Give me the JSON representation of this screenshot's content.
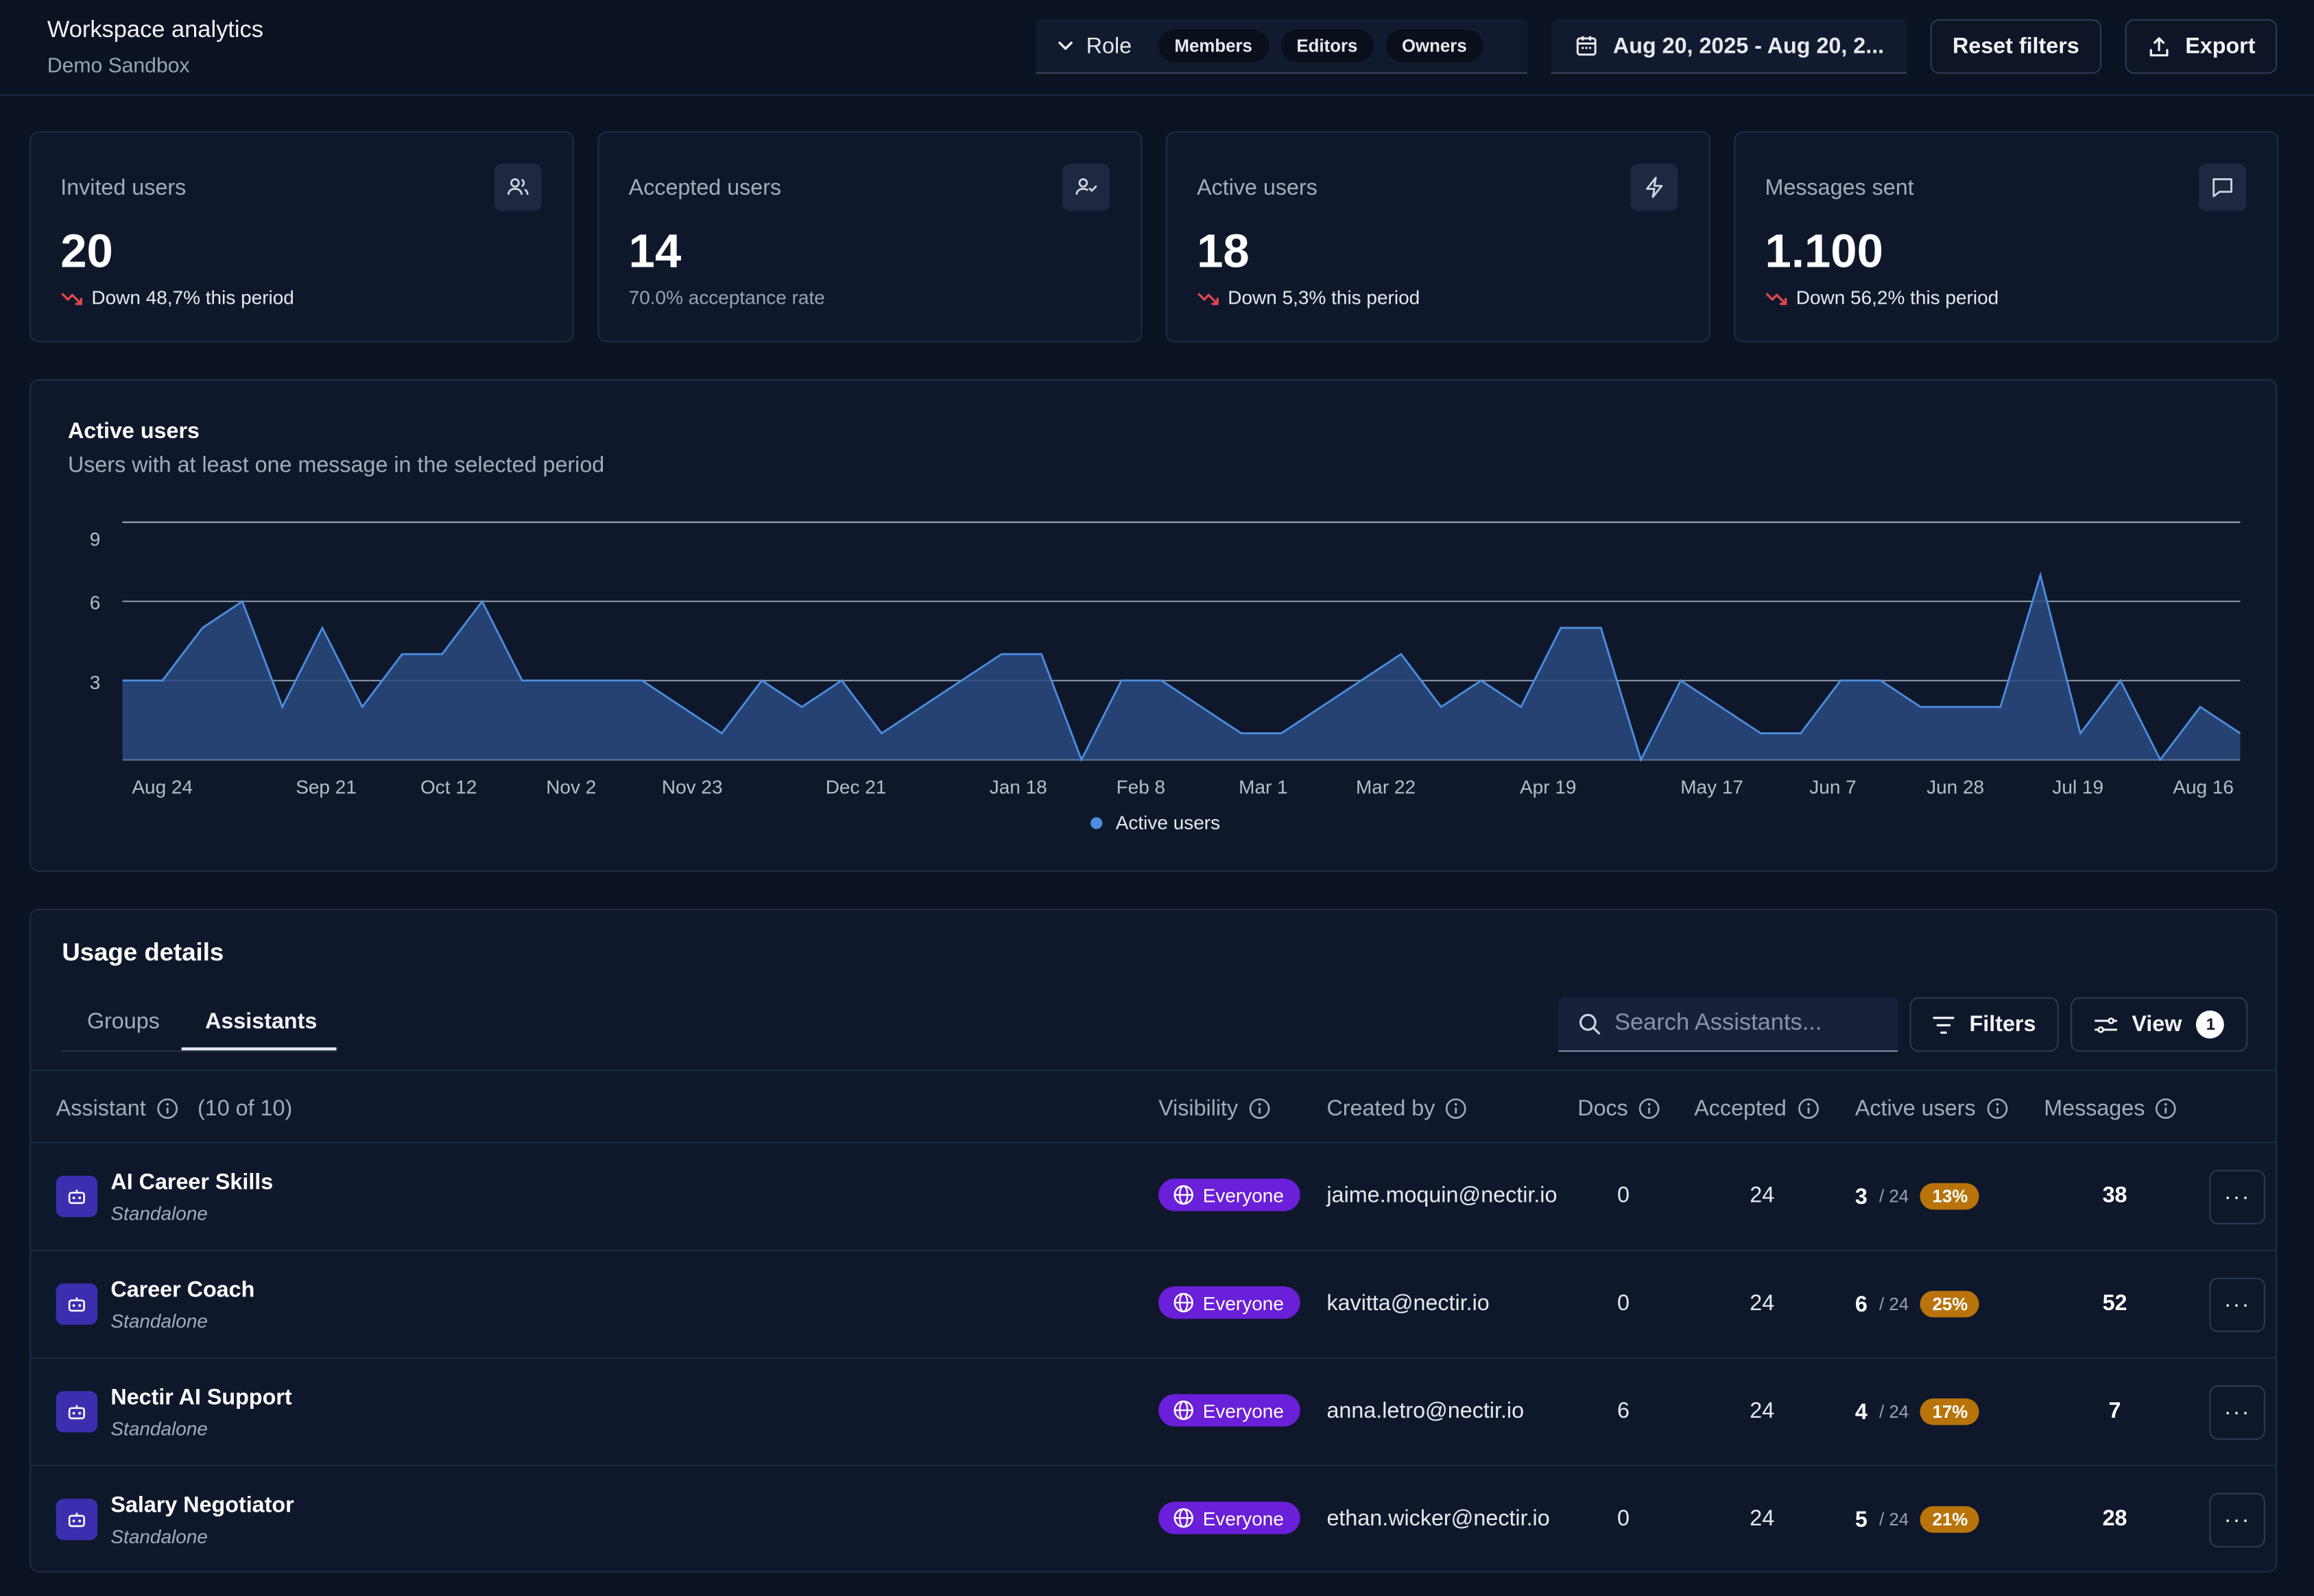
{
  "header": {
    "title": "Workspace analytics",
    "subtitle": "Demo Sandbox"
  },
  "filters": {
    "role_label": "Role",
    "roles": [
      "Members",
      "Editors",
      "Owners"
    ],
    "date_range": "Aug 20, 2025 - Aug 20, 2...",
    "reset_label": "Reset filters",
    "export_label": "Export"
  },
  "stats": [
    {
      "title": "Invited users",
      "value": "20",
      "sub": "Down 48,7% this period",
      "trend": "down",
      "icon": "users-icon"
    },
    {
      "title": "Accepted users",
      "value": "14",
      "sub": "70.0% acceptance rate",
      "trend": "none",
      "icon": "user-check-icon"
    },
    {
      "title": "Active users",
      "value": "18",
      "sub": "Down 5,3% this period",
      "trend": "down",
      "icon": "lightning-icon"
    },
    {
      "title": "Messages sent",
      "value": "1.100",
      "sub": "Down 56,2% this period",
      "trend": "down",
      "icon": "message-icon"
    }
  ],
  "colors": {
    "accent": "#4a8fe0",
    "trend_down": "#e5484d",
    "visibility_badge": "#6a1fd8",
    "percent_badge": "#b8740a",
    "assistant_icon": "#3b2fb0"
  },
  "chart_data": {
    "type": "area",
    "title": "Active users",
    "subtitle": "Users with at least one message in the selected period",
    "x_tick_labels": [
      "Aug 24",
      "Sep 21",
      "Oct 12",
      "Nov 2",
      "Nov 23",
      "Dec 21",
      "Jan 18",
      "Feb 8",
      "Mar 1",
      "Mar 22",
      "Apr 19",
      "May 17",
      "Jun 7",
      "Jun 28",
      "Jul 19",
      "Aug 16"
    ],
    "y_ticks": [
      3,
      6,
      9
    ],
    "ylim": [
      0,
      9
    ],
    "grid": true,
    "legend_position": "bottom",
    "series": [
      {
        "name": "Active users",
        "values": [
          3,
          3,
          5,
          6,
          2,
          5,
          2,
          4,
          4,
          6,
          3,
          3,
          3,
          3,
          2,
          1,
          3,
          2,
          3,
          1,
          2,
          3,
          4,
          4,
          0,
          3,
          3,
          2,
          1,
          1,
          2,
          3,
          4,
          2,
          3,
          2,
          5,
          5,
          0,
          3,
          2,
          1,
          1,
          3,
          3,
          2,
          2,
          2,
          7,
          1,
          3,
          0,
          2,
          1
        ]
      }
    ]
  },
  "usage": {
    "title": "Usage details",
    "tabs": [
      "Groups",
      "Assistants"
    ],
    "active_tab": "Assistants",
    "search_placeholder": "Search Assistants...",
    "filters_label": "Filters",
    "view_label": "View",
    "view_count": "1",
    "columns": {
      "assistant": "Assistant",
      "count": "(10 of 10)",
      "visibility": "Visibility",
      "created_by": "Created by",
      "docs": "Docs",
      "accepted": "Accepted",
      "active_users": "Active users",
      "messages": "Messages"
    },
    "rows": [
      {
        "name": "AI Career Skills",
        "type": "Standalone",
        "visibility": "Everyone",
        "created_by": "jaime.moquin@nectir.io",
        "docs": "0",
        "accepted": "24",
        "active": "3",
        "active_total": "/ 24",
        "active_pct": "13%",
        "messages": "38"
      },
      {
        "name": "Career Coach",
        "type": "Standalone",
        "visibility": "Everyone",
        "created_by": "kavitta@nectir.io",
        "docs": "0",
        "accepted": "24",
        "active": "6",
        "active_total": "/ 24",
        "active_pct": "25%",
        "messages": "52"
      },
      {
        "name": "Nectir AI Support",
        "type": "Standalone",
        "visibility": "Everyone",
        "created_by": "anna.letro@nectir.io",
        "docs": "6",
        "accepted": "24",
        "active": "4",
        "active_total": "/ 24",
        "active_pct": "17%",
        "messages": "7"
      },
      {
        "name": "Salary Negotiator",
        "type": "Standalone",
        "visibility": "Everyone",
        "created_by": "ethan.wicker@nectir.io",
        "docs": "0",
        "accepted": "24",
        "active": "5",
        "active_total": "/ 24",
        "active_pct": "21%",
        "messages": "28"
      }
    ]
  }
}
